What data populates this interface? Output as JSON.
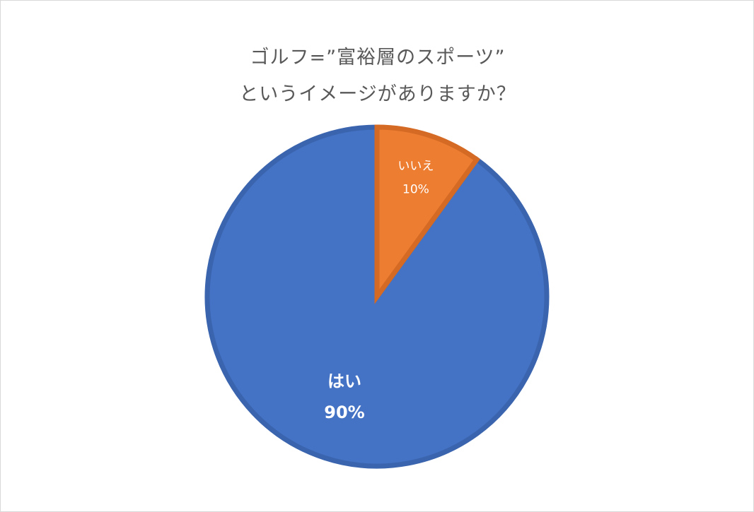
{
  "chart_data": {
    "type": "pie",
    "title": [
      "ゴルフ=”富裕層のスポーツ”",
      "というイメージがありますか？"
    ],
    "categories": [
      "はい",
      "いいえ"
    ],
    "values": [
      90,
      10
    ],
    "value_labels": [
      "90%",
      "10%"
    ],
    "colors": [
      "#4472C4",
      "#ED7D31"
    ],
    "border_colors": [
      "#3A64AE",
      "#D46A24"
    ],
    "legend": "none"
  }
}
